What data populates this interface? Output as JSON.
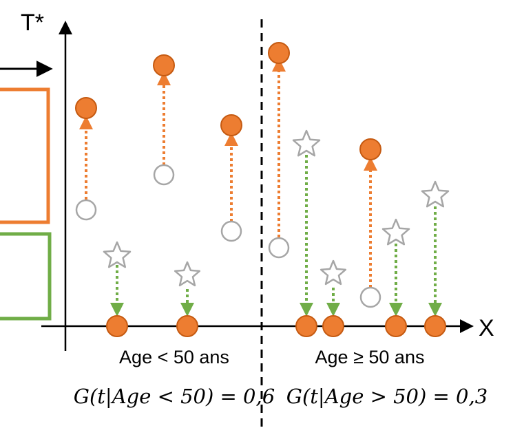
{
  "axes": {
    "y_label": "T*",
    "x_label": "X"
  },
  "groups": {
    "left_label": "Age < 50 ans",
    "right_label": "Age ≥ 50 ans",
    "left_formula": "G(t|Age < 50) = 0,6",
    "right_formula": "G(t|Age > 50) = 0,3"
  },
  "colors": {
    "observed": "#ED7D31",
    "observed_arrow": "#ED7D31",
    "censored_arrow": "#70AD47",
    "hollow_outline": "#A6A6A6",
    "axis": "#000000",
    "legend_box_orange": "#ED7D31",
    "legend_box_green": "#70AD47"
  }
}
